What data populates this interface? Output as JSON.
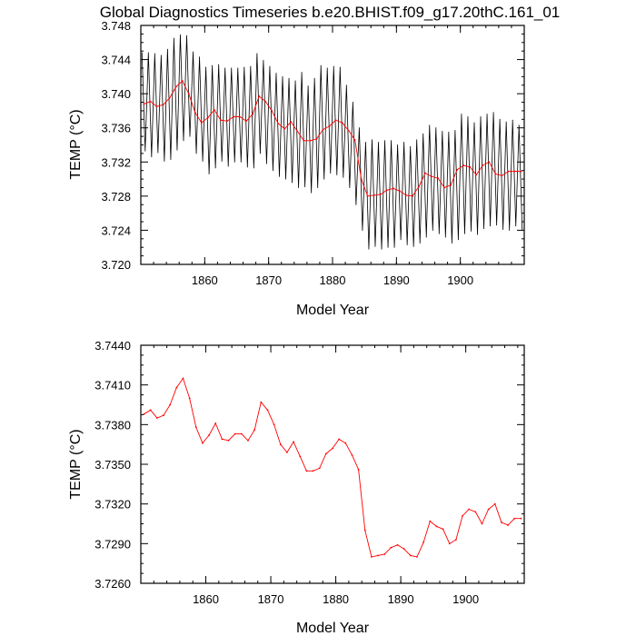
{
  "title": "Global Diagnostics Timeseries b.e20.BHIST.f09_g17.20thC.161_01",
  "colors": {
    "monthly": "#000000",
    "annual": "#ff0000",
    "axis": "#000000",
    "background": "#ffffff"
  },
  "chart_data": [
    {
      "type": "line",
      "name": "panel-top",
      "xlabel": "Model Year",
      "ylabel": "TEMP (°C)",
      "xlim": [
        1850,
        1910
      ],
      "ylim": [
        3.72,
        3.748
      ],
      "xticks": [
        1860,
        1870,
        1880,
        1890,
        1900
      ],
      "xtick_labels": [
        "1860",
        "1870",
        "1880",
        "1890",
        "1900"
      ],
      "yticks": [
        3.72,
        3.724,
        3.728,
        3.732,
        3.736,
        3.74,
        3.744,
        3.748
      ],
      "ytick_labels": [
        "3.720",
        "3.724",
        "3.728",
        "3.732",
        "3.736",
        "3.740",
        "3.744",
        "3.748"
      ],
      "grid": false,
      "series": [
        {
          "color": "#000000",
          "style": "monthly seasonal cycle",
          "x": [
            1850.5,
            1851.5,
            1852.5,
            1853.5,
            1854.5,
            1855.5,
            1856.5,
            1857.5,
            1858.5,
            1859.5,
            1860.5,
            1861.5,
            1862.5,
            1863.5,
            1864.5,
            1865.5,
            1866.5,
            1867.5,
            1868.5,
            1869.5,
            1870.5,
            1871.5,
            1872.5,
            1873.5,
            1874.5,
            1875.5,
            1876.5,
            1877.5,
            1878.5,
            1879.5,
            1880.5,
            1881.5,
            1882.5,
            1883.5,
            1884.5,
            1885.5,
            1886.5,
            1887.5,
            1888.5,
            1889.5,
            1890.5,
            1891.5,
            1892.5,
            1893.5,
            1894.5,
            1895.5,
            1896.5,
            1897.5,
            1898.5,
            1899.5,
            1900.5,
            1901.5,
            1902.5,
            1903.5,
            1904.5,
            1905.5,
            1906.5,
            1907.5,
            1908.5,
            1909.5
          ],
          "max": [
            3.7448,
            3.7448,
            3.7447,
            3.7445,
            3.7452,
            3.7465,
            3.7469,
            3.7468,
            3.7449,
            3.7443,
            3.7431,
            3.7433,
            3.7434,
            3.743,
            3.743,
            3.743,
            3.7431,
            3.7432,
            3.7447,
            3.7439,
            3.7432,
            3.7424,
            3.742,
            3.7418,
            3.7415,
            3.7425,
            3.7409,
            3.7418,
            3.7433,
            3.743,
            3.7432,
            3.7431,
            3.741,
            3.739,
            3.736,
            3.7343,
            3.7346,
            3.7343,
            3.7345,
            3.7345,
            3.734,
            3.7343,
            3.7338,
            3.7346,
            3.7353,
            3.7363,
            3.736,
            3.7356,
            3.7355,
            3.7357,
            3.7376,
            3.7373,
            3.7366,
            3.7373,
            3.7376,
            3.7378,
            3.737,
            3.7367,
            3.7369,
            3.7363
          ],
          "min": [
            3.7333,
            3.7326,
            3.7331,
            3.7321,
            3.7323,
            3.7334,
            3.7345,
            3.735,
            3.733,
            3.7321,
            3.7306,
            3.7313,
            3.7321,
            3.7315,
            3.732,
            3.732,
            3.7314,
            3.7313,
            3.733,
            3.7318,
            3.731,
            3.7303,
            3.73,
            3.7296,
            3.729,
            3.7291,
            3.7284,
            3.729,
            3.73,
            3.7307,
            3.7305,
            3.7302,
            3.729,
            3.727,
            3.724,
            3.7218,
            3.7221,
            3.7218,
            3.722,
            3.722,
            3.7229,
            3.7223,
            3.7221,
            3.7225,
            3.7232,
            3.724,
            3.7236,
            3.7232,
            3.7225,
            3.7229,
            3.7236,
            3.7239,
            3.7235,
            3.7242,
            3.7245,
            3.7246,
            3.7241,
            3.724,
            3.7245,
            3.724
          ]
        },
        {
          "color": "#ff0000",
          "style": "annual mean",
          "x": [
            1850.5,
            1851.5,
            1852.5,
            1853.5,
            1854.5,
            1855.5,
            1856.5,
            1857.5,
            1858.5,
            1859.5,
            1860.5,
            1861.5,
            1862.5,
            1863.5,
            1864.5,
            1865.5,
            1866.5,
            1867.5,
            1868.5,
            1869.5,
            1870.5,
            1871.5,
            1872.5,
            1873.5,
            1874.5,
            1875.5,
            1876.5,
            1877.5,
            1878.5,
            1879.5,
            1880.5,
            1881.5,
            1882.5,
            1883.5,
            1884.5,
            1885.5,
            1886.5,
            1887.5,
            1888.5,
            1889.5,
            1890.5,
            1891.5,
            1892.5,
            1893.5,
            1894.5,
            1895.5,
            1896.5,
            1897.5,
            1898.5,
            1899.5,
            1900.5,
            1901.5,
            1902.5,
            1903.5,
            1904.5,
            1905.5,
            1906.5,
            1907.5,
            1908.5,
            1909.5
          ],
          "values": [
            3.7388,
            3.7391,
            3.7385,
            3.7387,
            3.7395,
            3.7408,
            3.7415,
            3.74,
            3.7378,
            3.7366,
            3.7372,
            3.7381,
            3.7369,
            3.7368,
            3.7373,
            3.7373,
            3.7368,
            3.7376,
            3.7397,
            3.7391,
            3.738,
            3.7365,
            3.7359,
            3.7367,
            3.7356,
            3.7345,
            3.7345,
            3.7347,
            3.7358,
            3.7362,
            3.7369,
            3.7366,
            3.7357,
            3.7346,
            3.73,
            3.728,
            3.7281,
            3.7282,
            3.7287,
            3.7289,
            3.7286,
            3.7281,
            3.728,
            3.7291,
            3.7307,
            3.7303,
            3.7301,
            3.729,
            3.7293,
            3.7311,
            3.7316,
            3.7314,
            3.7305,
            3.7316,
            3.732,
            3.7306,
            3.7304,
            3.7309,
            3.7309,
            3.7309
          ]
        }
      ]
    },
    {
      "type": "line",
      "name": "panel-bottom",
      "xlabel": "Model Year",
      "ylabel": "TEMP (°C)",
      "xlim": [
        1850,
        1909
      ],
      "ylim": [
        3.726,
        3.744
      ],
      "xticks": [
        1860,
        1870,
        1880,
        1890,
        1900
      ],
      "xtick_labels": [
        "1860",
        "1870",
        "1880",
        "1890",
        "1900"
      ],
      "yticks": [
        3.726,
        3.729,
        3.732,
        3.735,
        3.738,
        3.741,
        3.744
      ],
      "ytick_labels": [
        "3.7260",
        "3.7290",
        "3.7320",
        "3.7350",
        "3.7380",
        "3.7410",
        "3.7440"
      ],
      "grid": false,
      "series": [
        {
          "color": "#ff0000",
          "style": "annual mean",
          "x": [
            1850.5,
            1851.5,
            1852.5,
            1853.5,
            1854.5,
            1855.5,
            1856.5,
            1857.5,
            1858.5,
            1859.5,
            1860.5,
            1861.5,
            1862.5,
            1863.5,
            1864.5,
            1865.5,
            1866.5,
            1867.5,
            1868.5,
            1869.5,
            1870.5,
            1871.5,
            1872.5,
            1873.5,
            1874.5,
            1875.5,
            1876.5,
            1877.5,
            1878.5,
            1879.5,
            1880.5,
            1881.5,
            1882.5,
            1883.5,
            1884.5,
            1885.5,
            1886.5,
            1887.5,
            1888.5,
            1889.5,
            1890.5,
            1891.5,
            1892.5,
            1893.5,
            1894.5,
            1895.5,
            1896.5,
            1897.5,
            1898.5,
            1899.5,
            1900.5,
            1901.5,
            1902.5,
            1903.5,
            1904.5,
            1905.5,
            1906.5,
            1907.5,
            1908.5
          ],
          "values": [
            3.7388,
            3.7391,
            3.7385,
            3.7387,
            3.7395,
            3.7408,
            3.7415,
            3.74,
            3.7378,
            3.7366,
            3.7372,
            3.7381,
            3.7369,
            3.7368,
            3.7373,
            3.7373,
            3.7368,
            3.7376,
            3.7397,
            3.7391,
            3.738,
            3.7365,
            3.7359,
            3.7367,
            3.7356,
            3.7345,
            3.7345,
            3.7347,
            3.7358,
            3.7362,
            3.7369,
            3.7366,
            3.7357,
            3.7346,
            3.73,
            3.728,
            3.7281,
            3.7282,
            3.7287,
            3.7289,
            3.7286,
            3.7281,
            3.728,
            3.7291,
            3.7307,
            3.7303,
            3.7301,
            3.729,
            3.7293,
            3.7311,
            3.7316,
            3.7314,
            3.7305,
            3.7316,
            3.732,
            3.7306,
            3.7304,
            3.7309,
            3.7309
          ]
        }
      ]
    }
  ]
}
